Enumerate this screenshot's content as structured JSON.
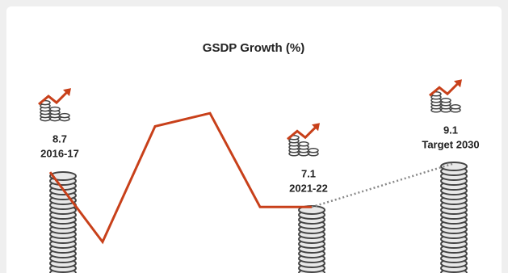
{
  "chart_data": {
    "type": "line",
    "title": "GSDP Growth (%)",
    "categories": [
      "2016-17",
      null,
      null,
      null,
      null,
      "2021-22",
      "Target 2030"
    ],
    "values": [
      8.7,
      5.5,
      10.8,
      11.4,
      7.1,
      7.1,
      9.1
    ],
    "color": "#c8401a",
    "dashed_last_segment": true,
    "ylim": [
      4,
      13
    ]
  }
}
